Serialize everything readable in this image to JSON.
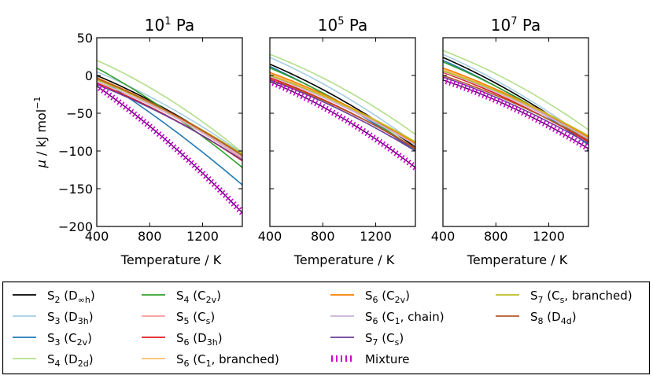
{
  "chart_data": {
    "type": "line",
    "xlabel": "Temperature / K",
    "ylabel": "μ / kJ mol⁻¹",
    "ylabel_main": "μ / kJ mol",
    "ylabel_sup": "−1",
    "xlim": [
      400,
      1500
    ],
    "ylim": [
      -200,
      50
    ],
    "x_ticks": [
      400,
      800,
      1200
    ],
    "x_tick_labels": [
      "400",
      "800",
      "1200"
    ],
    "y_ticks": [
      50,
      0,
      -50,
      -100,
      -150,
      -200
    ],
    "y_tick_labels": [
      "50",
      "0",
      "−50",
      "−100",
      "−150",
      "−200"
    ],
    "x": [
      400,
      1500
    ],
    "panels": [
      {
        "title": "10¹ Pa",
        "title_base": "10",
        "title_exp": "1",
        "title_unit": "Pa",
        "series": [
          {
            "name": "S2 (D∞h)",
            "values": [
              0,
              -108
            ],
            "curve": 0.25
          },
          {
            "name": "S3 (D3h)",
            "values": [
              5,
              -103
            ],
            "curve": 0.25
          },
          {
            "name": "S3 (C2v)",
            "values": [
              -2,
              -145
            ],
            "curve": 0.15
          },
          {
            "name": "S4 (D2d)",
            "values": [
              20,
              -102
            ],
            "curve": 0.3
          },
          {
            "name": "S4 (C2v)",
            "values": [
              10,
              -122
            ],
            "curve": 0.2
          },
          {
            "name": "S5 (Cs)",
            "values": [
              -5,
              -110
            ],
            "curve": 0.25
          },
          {
            "name": "S6 (D3h)",
            "values": [
              -10,
              -113
            ],
            "curve": 0.25
          },
          {
            "name": "S6 (C1, branched)",
            "values": [
              -5,
              -106
            ],
            "curve": 0.25
          },
          {
            "name": "S6 (C2v)",
            "values": [
              -3,
              -108
            ],
            "curve": 0.25
          },
          {
            "name": "S6 (C1, chain)",
            "values": [
              -8,
              -108
            ],
            "curve": 0.25
          },
          {
            "name": "S7 (Cs)",
            "values": [
              -12,
              -112
            ],
            "curve": 0.25
          },
          {
            "name": "S7 (Cs, branched)",
            "values": [
              -6,
              -104
            ],
            "curve": 0.25
          },
          {
            "name": "S8 (D4d)",
            "values": [
              -4,
              -106
            ],
            "curve": 0.25
          }
        ],
        "mixture": {
          "name": "Mixture",
          "values": [
            -14,
            -182
          ],
          "curve": 0.2
        }
      },
      {
        "title": "10⁵ Pa",
        "title_base": "10",
        "title_exp": "5",
        "title_unit": "Pa",
        "series": [
          {
            "name": "S2 (D∞h)",
            "values": [
              15,
              -95
            ],
            "curve": 0.25
          },
          {
            "name": "S3 (D3h)",
            "values": [
              24,
              -90
            ],
            "curve": 0.25
          },
          {
            "name": "S3 (C2v)",
            "values": [
              12,
              -100
            ],
            "curve": 0.2
          },
          {
            "name": "S4 (D2d)",
            "values": [
              28,
              -78
            ],
            "curve": 0.3
          },
          {
            "name": "S4 (C2v)",
            "values": [
              10,
              -98
            ],
            "curve": 0.25
          },
          {
            "name": "S5 (Cs)",
            "values": [
              2,
              -92
            ],
            "curve": 0.25
          },
          {
            "name": "S6 (D3h)",
            "values": [
              -3,
              -97
            ],
            "curve": 0.25
          },
          {
            "name": "S6 (C1, branched)",
            "values": [
              2,
              -88
            ],
            "curve": 0.25
          },
          {
            "name": "S6 (C2v)",
            "values": [
              4,
              -90
            ],
            "curve": 0.25
          },
          {
            "name": "S6 (C1, chain)",
            "values": [
              -1,
              -92
            ],
            "curve": 0.25
          },
          {
            "name": "S7 (Cs)",
            "values": [
              -6,
              -100
            ],
            "curve": 0.25
          },
          {
            "name": "S7 (Cs, branched)",
            "values": [
              0,
              -88
            ],
            "curve": 0.25
          },
          {
            "name": "S8 (D4d)",
            "values": [
              -5,
              -96
            ],
            "curve": 0.25
          }
        ],
        "mixture": {
          "name": "Mixture",
          "values": [
            -8,
            -122
          ],
          "curve": 0.3
        }
      },
      {
        "title": "10⁷ Pa",
        "title_base": "10",
        "title_exp": "7",
        "title_unit": "Pa",
        "series": [
          {
            "name": "S2 (D∞h)",
            "values": [
              24,
              -88
            ],
            "curve": 0.25
          },
          {
            "name": "S3 (D3h)",
            "values": [
              28,
              -85
            ],
            "curve": 0.25
          },
          {
            "name": "S3 (C2v)",
            "values": [
              20,
              -92
            ],
            "curve": 0.25
          },
          {
            "name": "S4 (D2d)",
            "values": [
              33,
              -72
            ],
            "curve": 0.3
          },
          {
            "name": "S4 (C2v)",
            "values": [
              18,
              -88
            ],
            "curve": 0.25
          },
          {
            "name": "S5 (Cs)",
            "values": [
              8,
              -84
            ],
            "curve": 0.25
          },
          {
            "name": "S6 (D3h)",
            "values": [
              4,
              -88
            ],
            "curve": 0.25
          },
          {
            "name": "S6 (C1, branched)",
            "values": [
              8,
              -80
            ],
            "curve": 0.25
          },
          {
            "name": "S6 (C2v)",
            "values": [
              10,
              -82
            ],
            "curve": 0.25
          },
          {
            "name": "S6 (C1, chain)",
            "values": [
              5,
              -84
            ],
            "curve": 0.25
          },
          {
            "name": "S7 (Cs)",
            "values": [
              -2,
              -90
            ],
            "curve": 0.25
          },
          {
            "name": "S7 (Cs, branched)",
            "values": [
              6,
              -80
            ],
            "curve": 0.25
          },
          {
            "name": "S8 (D4d)",
            "values": [
              0,
              -86
            ],
            "curve": 0.25
          }
        ],
        "mixture": {
          "name": "Mixture",
          "values": [
            -6,
            -97
          ],
          "curve": 0.3
        }
      }
    ],
    "legend": {
      "placement": "bottom",
      "entries": [
        {
          "label": "S2 (D∞h)",
          "base": "S",
          "sub": "2",
          "mid": " (D",
          "sub2": "∞h",
          "end": ")",
          "color": "#000000",
          "style": "solid"
        },
        {
          "label": "S3 (D3h)",
          "base": "S",
          "sub": "3",
          "mid": " (D",
          "sub2": "3h",
          "end": ")",
          "color": "#a6cee3",
          "style": "solid"
        },
        {
          "label": "S3 (C2v)",
          "base": "S",
          "sub": "3",
          "mid": " (C",
          "sub2": "2v",
          "end": ")",
          "color": "#1f78b4",
          "style": "solid"
        },
        {
          "label": "S4 (D2d)",
          "base": "S",
          "sub": "4",
          "mid": " (D",
          "sub2": "2d",
          "end": ")",
          "color": "#b2df8a",
          "style": "solid"
        },
        {
          "label": "S4 (C2v)",
          "base": "S",
          "sub": "4",
          "mid": " (C",
          "sub2": "2v",
          "end": ")",
          "color": "#33a02c",
          "style": "solid"
        },
        {
          "label": "S5 (Cs)",
          "base": "S",
          "sub": "5",
          "mid": " (C",
          "sub2": "s",
          "end": ")",
          "color": "#fb9a99",
          "style": "solid"
        },
        {
          "label": "S6 (D3h)",
          "base": "S",
          "sub": "6",
          "mid": " (D",
          "sub2": "3h",
          "end": ")",
          "color": "#e31a1c",
          "style": "solid"
        },
        {
          "label": "S6 (C1, branched)",
          "base": "S",
          "sub": "6",
          "mid": " (C",
          "sub2": "1",
          "end": ", branched)",
          "color": "#fdbf6f",
          "style": "solid"
        },
        {
          "label": "S6 (C2v)",
          "base": "S",
          "sub": "6",
          "mid": " (C",
          "sub2": "2v",
          "end": ")",
          "color": "#ff7f00",
          "style": "solid"
        },
        {
          "label": "S6 (C1, chain)",
          "base": "S",
          "sub": "6",
          "mid": " (C",
          "sub2": "1",
          "end": ", chain)",
          "color": "#cab2d6",
          "style": "solid"
        },
        {
          "label": "S7 (Cs)",
          "base": "S",
          "sub": "7",
          "mid": " (C",
          "sub2": "s",
          "end": ")",
          "color": "#6a3d9a",
          "style": "solid"
        },
        {
          "label": "S7 (Cs, branched)",
          "base": "S",
          "sub": "7",
          "mid": " (C",
          "sub2": "s",
          "end": ", branched)",
          "color": "#bcbd22",
          "style": "solid"
        },
        {
          "label": "S8 (D4d)",
          "base": "S",
          "sub": "8",
          "mid": " (D",
          "sub2": "4d",
          "end": ")",
          "color": "#b15928",
          "style": "solid"
        },
        {
          "label": "Mixture",
          "base": "Mixture",
          "sub": "",
          "mid": "",
          "sub2": "",
          "end": "",
          "color": "#cc00cc",
          "style": "hatched"
        }
      ]
    }
  }
}
